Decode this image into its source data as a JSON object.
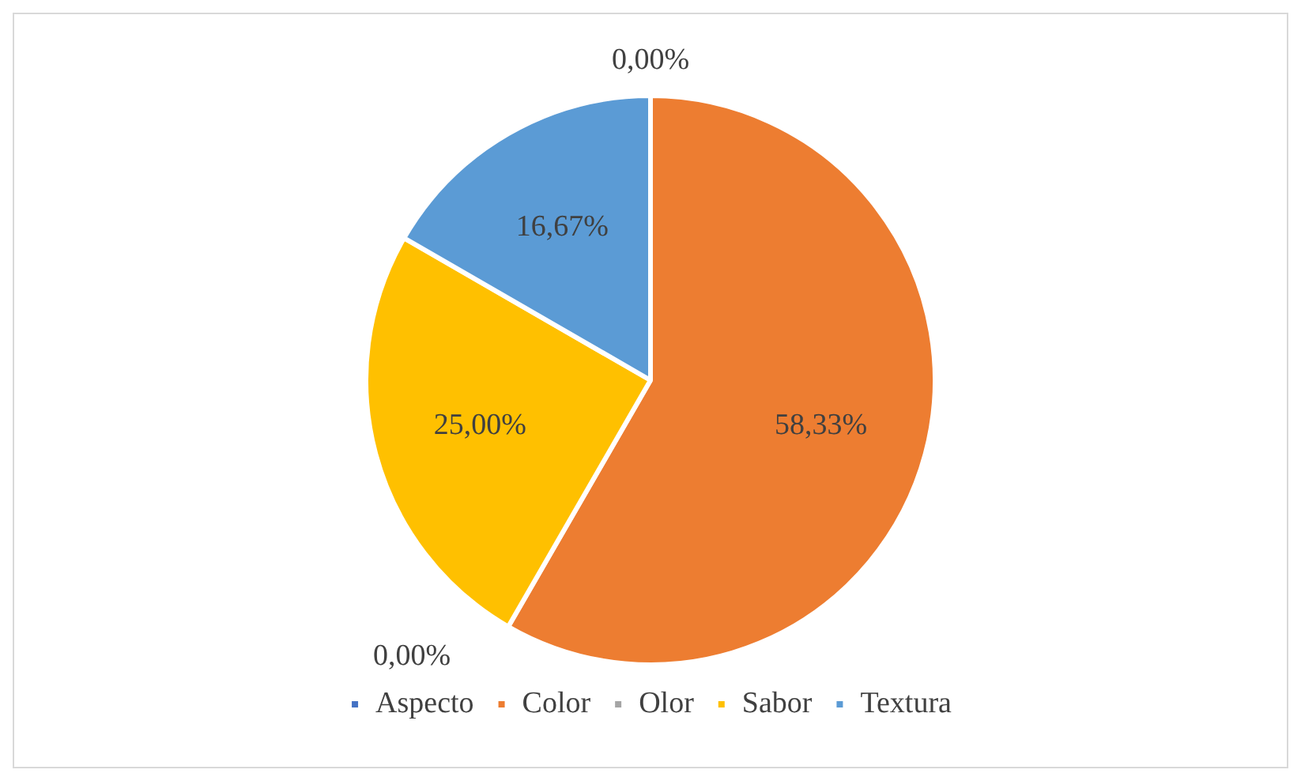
{
  "chart_data": {
    "type": "pie",
    "categories": [
      "Aspecto",
      "Color",
      "Olor",
      "Sabor",
      "Textura"
    ],
    "values": [
      0,
      58.33,
      0,
      25,
      16.67
    ],
    "colors": [
      "#4472c4",
      "#ed7d31",
      "#a5a5a5",
      "#ffc000",
      "#5b9bd5"
    ],
    "value_labels": [
      "0,00%",
      "58,33%",
      "0,00%",
      "25,00%",
      "16,67%"
    ],
    "legend": "bottom"
  }
}
